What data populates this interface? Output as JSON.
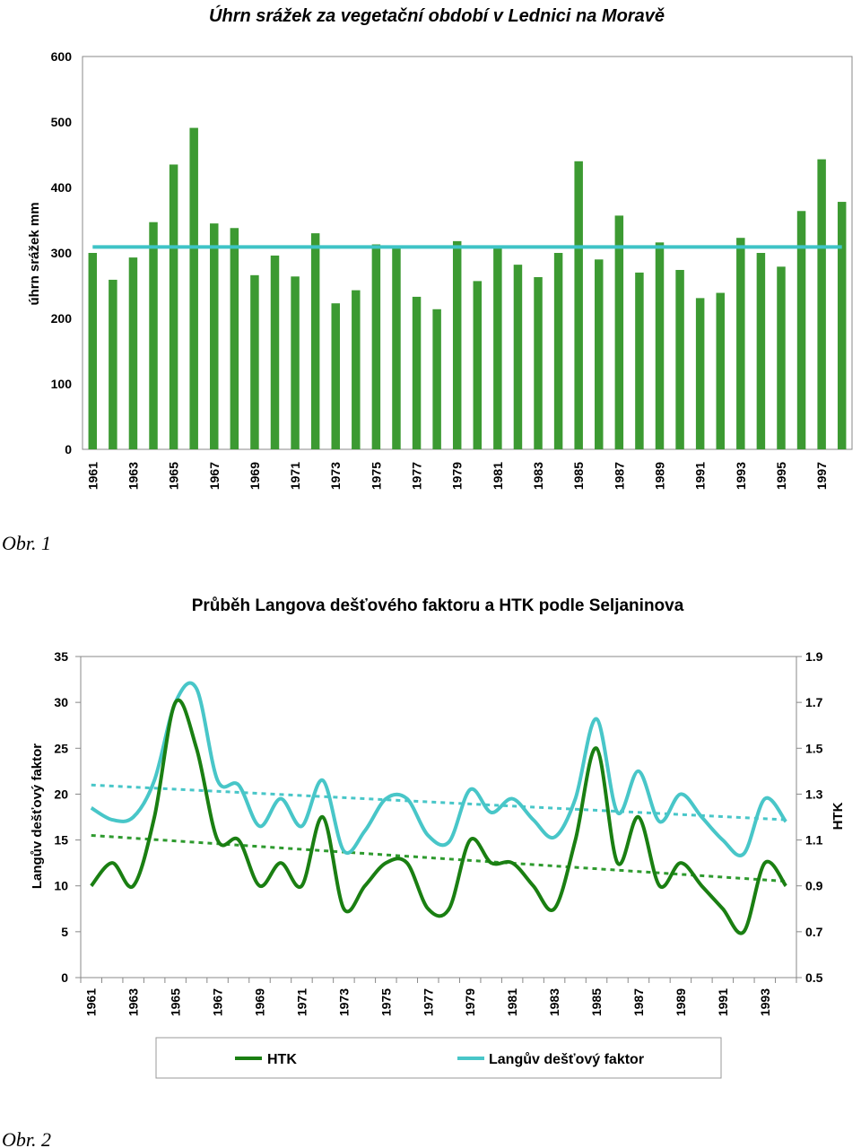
{
  "captions": {
    "fig1": "Obr. 1",
    "fig2": "Obr. 2"
  },
  "colors": {
    "bar": "#3c9a32",
    "mean_line": "#3ec3c6",
    "htk": "#1a7f12",
    "lang": "#48c6c8",
    "trend_htk": "#2e9a2e",
    "trend_lang": "#48c6c8"
  },
  "chart_data": [
    {
      "type": "bar",
      "title": "Úhrn srážek za vegetační období v Lednici na Moravě",
      "xlabel": "",
      "ylabel": "úhrn srážek mm",
      "ylim": [
        0,
        600
      ],
      "yticks": [
        0,
        100,
        200,
        300,
        400,
        500,
        600
      ],
      "grid": false,
      "categories": [
        1961,
        1962,
        1963,
        1964,
        1965,
        1966,
        1967,
        1968,
        1969,
        1970,
        1971,
        1972,
        1973,
        1974,
        1975,
        1976,
        1977,
        1978,
        1979,
        1980,
        1981,
        1982,
        1983,
        1984,
        1985,
        1986,
        1987,
        1988,
        1989,
        1990,
        1991,
        1992,
        1993,
        1994,
        1995,
        1996,
        1997,
        1998
      ],
      "xtick_labels": [
        "1961",
        "1963",
        "1965",
        "1967",
        "1969",
        "1971",
        "1973",
        "1975",
        "1977",
        "1979",
        "1981",
        "1983",
        "1985",
        "1987",
        "1989",
        "1991",
        "1993",
        "1995",
        "1997"
      ],
      "values": [
        300,
        259,
        293,
        347,
        435,
        491,
        345,
        338,
        266,
        296,
        264,
        330,
        223,
        243,
        313,
        310,
        233,
        214,
        318,
        257,
        310,
        282,
        263,
        300,
        440,
        290,
        357,
        270,
        316,
        274,
        231,
        239,
        323,
        300,
        279,
        364,
        443,
        378
      ],
      "mean_line": 309
    },
    {
      "type": "line",
      "title": "Průběh Langova dešťového faktoru a HTK podle Seljaninova",
      "xlabel": "",
      "ylabel": "Langův dešťový faktor",
      "ylabel_right": "HTK",
      "ylim": [
        0,
        35
      ],
      "yticks": [
        0,
        5,
        10,
        15,
        20,
        25,
        30,
        35
      ],
      "ylim_right": [
        0.5,
        1.9
      ],
      "yticks_right": [
        "0.5",
        "0.7",
        "0.9",
        "1.1",
        "1.3",
        "1.5",
        "1.7",
        "1.9"
      ],
      "grid": false,
      "legend_position": "bottom",
      "x": [
        1961,
        1962,
        1963,
        1964,
        1965,
        1966,
        1967,
        1968,
        1969,
        1970,
        1971,
        1972,
        1973,
        1974,
        1975,
        1976,
        1977,
        1978,
        1979,
        1980,
        1981,
        1982,
        1983,
        1984,
        1985,
        1986,
        1987,
        1988,
        1989,
        1990,
        1991,
        1992,
        1993,
        1994
      ],
      "xtick_labels": [
        "1961",
        "1963",
        "1965",
        "1967",
        "1969",
        "1971",
        "1973",
        "1975",
        "1977",
        "1979",
        "1981",
        "1983",
        "1985",
        "1987",
        "1989",
        "1991",
        "1993"
      ],
      "series": [
        {
          "name": "HTK",
          "axis": "right",
          "values": [
            0.9,
            1.0,
            0.9,
            1.2,
            1.7,
            1.5,
            1.1,
            1.1,
            0.9,
            1.0,
            0.9,
            1.2,
            0.8,
            0.9,
            1.0,
            1.0,
            0.8,
            0.8,
            1.1,
            1.0,
            1.0,
            0.9,
            0.8,
            1.1,
            1.5,
            1.0,
            1.2,
            0.9,
            1.0,
            0.9,
            0.8,
            0.7,
            1.0,
            0.9
          ]
        },
        {
          "name": "Langův dešťový faktor",
          "axis": "left",
          "values": [
            18.5,
            17.2,
            17.5,
            21.5,
            30.0,
            31.5,
            21.5,
            21.0,
            16.5,
            19.5,
            16.5,
            21.5,
            13.8,
            16.0,
            19.5,
            19.5,
            15.5,
            14.8,
            20.5,
            18.0,
            19.5,
            17.2,
            15.3,
            19.5,
            28.2,
            18.0,
            22.5,
            17.0,
            20.0,
            17.5,
            15.0,
            13.5,
            19.5,
            17.0
          ]
        }
      ],
      "trend_lines": [
        {
          "series": "HTK",
          "axis": "right",
          "start": 1.12,
          "end": 0.92
        },
        {
          "series": "Langův dešťový faktor",
          "axis": "left",
          "start": 21.0,
          "end": 17.2
        }
      ]
    }
  ]
}
